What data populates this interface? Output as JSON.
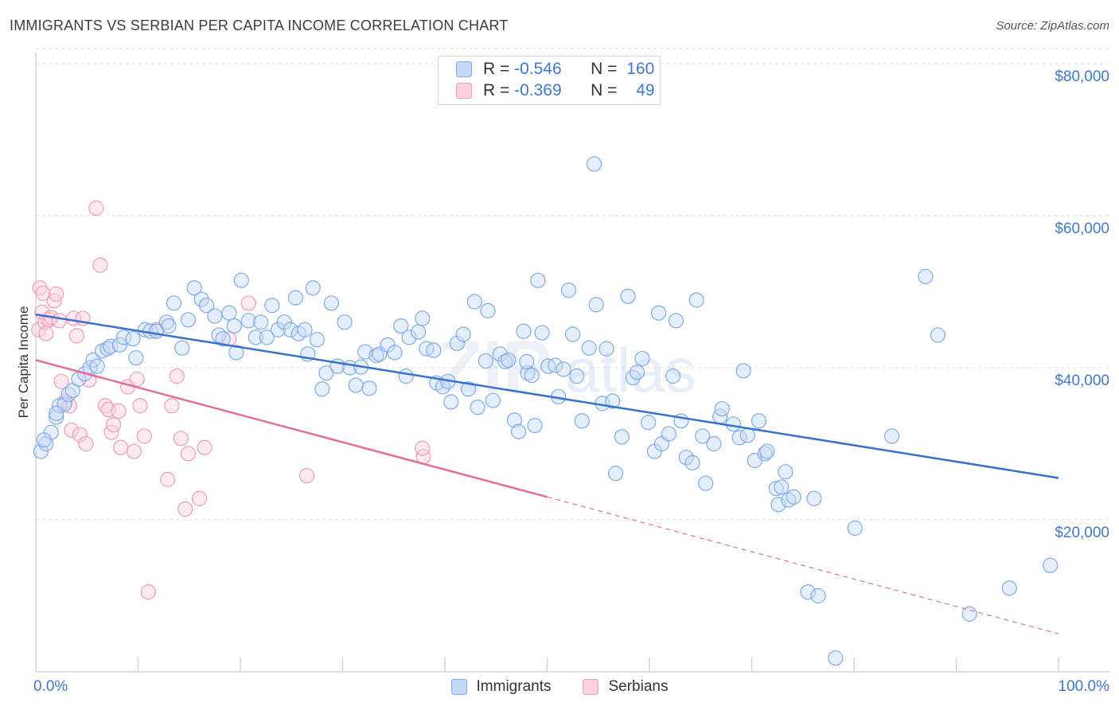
{
  "header": {
    "title": "IMMIGRANTS VS SERBIAN PER CAPITA INCOME CORRELATION CHART",
    "source": "Source: ZipAtlas.com"
  },
  "legend": {
    "rows": [
      {
        "r_label": "R =",
        "r_value": "-0.546",
        "n_label": "N =",
        "n_value": "160",
        "color": "#7eaaea"
      },
      {
        "r_label": "R =",
        "r_value": "-0.369",
        "n_label": "N =",
        "n_value": "49",
        "color": "#f09ab7"
      }
    ]
  },
  "chart_data": {
    "type": "scatter",
    "title": "IMMIGRANTS VS SERBIAN PER CAPITA INCOME CORRELATION CHART",
    "xlabel": "",
    "ylabel": "Per Capita Income",
    "xlim": [
      0,
      100
    ],
    "ylim": [
      0,
      82000
    ],
    "x_tick_labels": [
      "0.0%",
      "100.0%"
    ],
    "y_ticks": [
      20000,
      40000,
      60000,
      80000
    ],
    "y_tick_labels": [
      "$20,000",
      "$40,000",
      "$60,000",
      "$80,000"
    ],
    "grid": "horizontal dashed",
    "legend_position": "top-center and bottom",
    "watermark": "ZIPatlas",
    "series": [
      {
        "name": "Immigrants",
        "color": "#7eaaea",
        "trend_color": "#3471d0",
        "trend": {
          "x": [
            0,
            100
          ],
          "y": [
            47000,
            25500
          ]
        },
        "points": [
          [
            0.5,
            29000
          ],
          [
            1,
            30000
          ],
          [
            1.5,
            31500
          ],
          [
            2,
            33500
          ],
          [
            2.3,
            35000
          ],
          [
            2.8,
            35200
          ],
          [
            3.2,
            36500
          ],
          [
            3.6,
            37000
          ],
          [
            4.2,
            38500
          ],
          [
            4.8,
            39200
          ],
          [
            5.3,
            40000
          ],
          [
            5.6,
            41000
          ],
          [
            6,
            40200
          ],
          [
            6.5,
            42200
          ],
          [
            7,
            42500
          ],
          [
            7.3,
            42800
          ],
          [
            8.2,
            43000
          ],
          [
            8.6,
            44000
          ],
          [
            9.8,
            41300
          ],
          [
            9.5,
            43800
          ],
          [
            10.7,
            45000
          ],
          [
            11.2,
            44800
          ],
          [
            11.8,
            44800
          ],
          [
            12.8,
            46000
          ],
          [
            13,
            45500
          ],
          [
            13.5,
            48500
          ],
          [
            14.3,
            42600
          ],
          [
            14.9,
            46300
          ],
          [
            15.5,
            50500
          ],
          [
            16.2,
            49000
          ],
          [
            16.7,
            48200
          ],
          [
            17.5,
            46800
          ],
          [
            17.9,
            44300
          ],
          [
            18.3,
            43800
          ],
          [
            18.9,
            47200
          ],
          [
            19.4,
            45500
          ],
          [
            19.6,
            42000
          ],
          [
            20.1,
            51500
          ],
          [
            20.8,
            46200
          ],
          [
            21.5,
            44000
          ],
          [
            22,
            46000
          ],
          [
            22.6,
            44000
          ],
          [
            23.1,
            48200
          ],
          [
            23.7,
            45000
          ],
          [
            24.3,
            46000
          ],
          [
            24.9,
            45000
          ],
          [
            25.4,
            49200
          ],
          [
            25.7,
            44500
          ],
          [
            26.3,
            45000
          ],
          [
            26.6,
            41800
          ],
          [
            27.1,
            50500
          ],
          [
            27.5,
            43700
          ],
          [
            28.4,
            39300
          ],
          [
            28,
            37200
          ],
          [
            28.9,
            48500
          ],
          [
            29.5,
            40200
          ],
          [
            30.2,
            46000
          ],
          [
            30.7,
            40000
          ],
          [
            31.3,
            37700
          ],
          [
            31.8,
            40100
          ],
          [
            32.2,
            42100
          ],
          [
            32.6,
            37300
          ],
          [
            33.3,
            41600
          ],
          [
            33.6,
            41800
          ],
          [
            34.4,
            43000
          ],
          [
            35.1,
            42000
          ],
          [
            35.7,
            45500
          ],
          [
            36.2,
            38900
          ],
          [
            36.5,
            44000
          ],
          [
            37.4,
            44700
          ],
          [
            37.8,
            46500
          ],
          [
            38.2,
            42500
          ],
          [
            38.9,
            42300
          ],
          [
            39.2,
            38000
          ],
          [
            39.8,
            37500
          ],
          [
            40.3,
            38200
          ],
          [
            40.6,
            35500
          ],
          [
            41.2,
            43200
          ],
          [
            41.8,
            44400
          ],
          [
            42.3,
            37200
          ],
          [
            42.9,
            48700
          ],
          [
            43.2,
            34800
          ],
          [
            44,
            40900
          ],
          [
            44.2,
            47500
          ],
          [
            44.7,
            35700
          ],
          [
            45.4,
            41800
          ],
          [
            45.9,
            40800
          ],
          [
            46.2,
            41000
          ],
          [
            46.8,
            33100
          ],
          [
            47.2,
            31600
          ],
          [
            47.7,
            44800
          ],
          [
            48.1,
            39300
          ],
          [
            48.5,
            39000
          ],
          [
            48.8,
            32400
          ],
          [
            49.1,
            51500
          ],
          [
            49.5,
            44600
          ],
          [
            50.1,
            40200
          ],
          [
            50.8,
            40300
          ],
          [
            51.1,
            36200
          ],
          [
            51.6,
            39800
          ],
          [
            52.1,
            50200
          ],
          [
            52.5,
            44400
          ],
          [
            52.9,
            38900
          ],
          [
            53.4,
            33000
          ],
          [
            54.1,
            42600
          ],
          [
            54.6,
            66800
          ],
          [
            54.8,
            48300
          ],
          [
            55.4,
            35300
          ],
          [
            55.8,
            42500
          ],
          [
            56.4,
            35600
          ],
          [
            56.7,
            26100
          ],
          [
            57.3,
            30900
          ],
          [
            57.9,
            49400
          ],
          [
            58.4,
            38700
          ],
          [
            58.8,
            39400
          ],
          [
            59.3,
            41200
          ],
          [
            59.9,
            32800
          ],
          [
            60.5,
            29000
          ],
          [
            60.9,
            47200
          ],
          [
            61.2,
            30000
          ],
          [
            61.9,
            31300
          ],
          [
            62.3,
            38900
          ],
          [
            62.6,
            46200
          ],
          [
            63.1,
            33000
          ],
          [
            63.6,
            28200
          ],
          [
            64.2,
            27500
          ],
          [
            64.6,
            48900
          ],
          [
            65.2,
            31000
          ],
          [
            65.5,
            24800
          ],
          [
            66.3,
            30000
          ],
          [
            66.9,
            33600
          ],
          [
            67.1,
            34600
          ],
          [
            68.2,
            32600
          ],
          [
            68.8,
            30800
          ],
          [
            69.2,
            39600
          ],
          [
            69.6,
            31100
          ],
          [
            70.3,
            27800
          ],
          [
            70.7,
            33000
          ],
          [
            71.3,
            28700
          ],
          [
            71.5,
            29000
          ],
          [
            72.4,
            24100
          ],
          [
            72.6,
            22000
          ],
          [
            72.9,
            24300
          ],
          [
            73.3,
            26300
          ],
          [
            73.6,
            22600
          ],
          [
            74.1,
            23000
          ],
          [
            75.5,
            10500
          ],
          [
            76.1,
            22800
          ],
          [
            76.5,
            10000
          ],
          [
            78.2,
            1800
          ],
          [
            80.1,
            18900
          ],
          [
            83.7,
            31000
          ],
          [
            87,
            52000
          ],
          [
            88.2,
            44300
          ],
          [
            91.3,
            7600
          ],
          [
            95.2,
            11000
          ],
          [
            99.2,
            14000
          ],
          [
            0.8,
            30500
          ],
          [
            2,
            34000
          ],
          [
            48,
            40800
          ]
        ]
      },
      {
        "name": "Serbians",
        "color": "#f09ab7",
        "trend_color": "#e46d95",
        "trend": {
          "x": [
            0,
            50
          ],
          "y": [
            41000,
            23000
          ]
        },
        "trend_extrapolated": {
          "x": [
            50,
            100
          ],
          "y": [
            23000,
            5000
          ]
        },
        "points": [
          [
            0.3,
            45000
          ],
          [
            0.4,
            50500
          ],
          [
            0.6,
            47300
          ],
          [
            0.7,
            49800
          ],
          [
            0.9,
            46000
          ],
          [
            1,
            44500
          ],
          [
            1.3,
            46300
          ],
          [
            1.5,
            46600
          ],
          [
            1.8,
            48800
          ],
          [
            2,
            49700
          ],
          [
            2.3,
            46200
          ],
          [
            2.5,
            38200
          ],
          [
            2.9,
            35600
          ],
          [
            3.3,
            35000
          ],
          [
            3.5,
            31800
          ],
          [
            3.7,
            46500
          ],
          [
            4,
            44200
          ],
          [
            4.3,
            31200
          ],
          [
            4.6,
            46500
          ],
          [
            4.9,
            30000
          ],
          [
            5.2,
            38400
          ],
          [
            5.9,
            61000
          ],
          [
            6.3,
            53500
          ],
          [
            6.8,
            35000
          ],
          [
            7.1,
            34500
          ],
          [
            7.4,
            31500
          ],
          [
            7.6,
            32500
          ],
          [
            8.1,
            34300
          ],
          [
            8.3,
            29500
          ],
          [
            9,
            37500
          ],
          [
            9.6,
            29000
          ],
          [
            9.9,
            38500
          ],
          [
            10.2,
            35000
          ],
          [
            10.6,
            31000
          ],
          [
            11,
            10500
          ],
          [
            11.8,
            45000
          ],
          [
            12.9,
            25300
          ],
          [
            13.3,
            35000
          ],
          [
            13.8,
            38900
          ],
          [
            14.2,
            30700
          ],
          [
            14.6,
            21400
          ],
          [
            14.9,
            28700
          ],
          [
            16,
            22800
          ],
          [
            16.5,
            29500
          ],
          [
            18.9,
            43800
          ],
          [
            20.8,
            48500
          ],
          [
            26.5,
            25800
          ],
          [
            37.9,
            28300
          ],
          [
            37.8,
            29400
          ]
        ]
      }
    ]
  },
  "axis": {
    "y_label": "Per Capita Income",
    "x_left_label": "0.0%",
    "x_right_label": "100.0%"
  },
  "bottom_legend": {
    "immigrants": "Immigrants",
    "serbians": "Serbians"
  }
}
